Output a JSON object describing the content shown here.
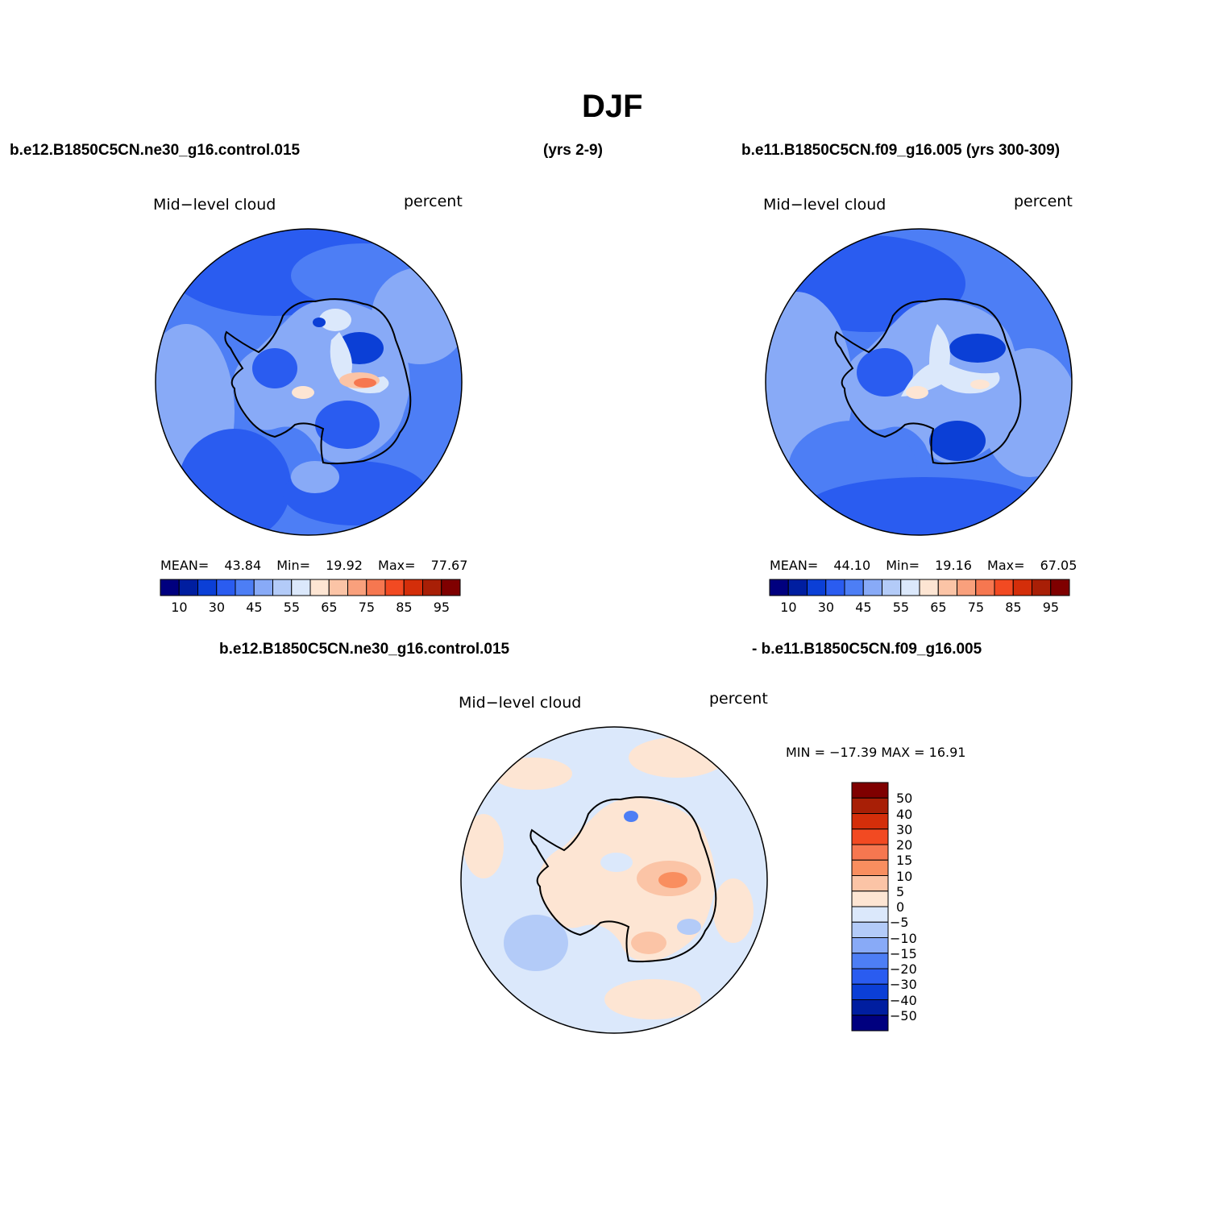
{
  "figure": {
    "title": "DJF",
    "case_left": "b.e12.B1850C5CN.ne30_g16.control.015",
    "years_left": "(yrs 2-9)",
    "case_right": "b.e11.B1850C5CN.f09_g16.005 (yrs 300-309)",
    "diff_case_a": "b.e12.B1850C5CN.ne30_g16.control.015",
    "diff_case_b": "- b.e11.B1850C5CN.f09_g16.005"
  },
  "panels": [
    {
      "variable": "Mid−level cloud",
      "units": "percent",
      "mean_label": "MEAN=",
      "mean": "43.84",
      "min_label": "Min=",
      "min": "19.92",
      "max_label": "Max=",
      "max": "77.67"
    },
    {
      "variable": "Mid−level cloud",
      "units": "percent",
      "mean_label": "MEAN=",
      "mean": "44.10",
      "min_label": "Min=",
      "min": "19.16",
      "max_label": "Max=",
      "max": "67.05"
    },
    {
      "variable": "Mid−level cloud",
      "units": "percent",
      "stats_text": "MIN = −17.39  MAX =   16.91"
    }
  ],
  "colorbar_abs": {
    "tick_labels": [
      "10",
      "30",
      "45",
      "55",
      "65",
      "75",
      "85",
      "95"
    ],
    "colors": [
      "#00007f",
      "#001ea0",
      "#0b3fd6",
      "#2a5cf0",
      "#4d7ef5",
      "#88aaf7",
      "#b3cbf8",
      "#dbe8fb",
      "#fde5d3",
      "#fbc4a6",
      "#f9a07c",
      "#f67750",
      "#f24a22",
      "#d42e0a",
      "#a81f06",
      "#7f0000"
    ]
  },
  "colorbar_diff": {
    "tick_labels": [
      "50",
      "40",
      "30",
      "20",
      "15",
      "10",
      "5",
      "0",
      "−5",
      "−10",
      "−15",
      "−20",
      "−30",
      "−40",
      "−50"
    ],
    "colors": [
      "#7f0000",
      "#a81f06",
      "#d42e0a",
      "#f24a22",
      "#f67750",
      "#f98e5f",
      "#fbc4a6",
      "#fde5d3",
      "#dbe8fb",
      "#b3cbf8",
      "#88aaf7",
      "#4d7ef5",
      "#2a5cf0",
      "#0b3fd6",
      "#001ea0",
      "#00007f"
    ]
  },
  "map": {
    "projection": "south polar stereographic",
    "field_colors": {
      "panel1_background": "#4d7ef5",
      "panel2_background": "#4d7ef5",
      "diff_background": "#dbe8fb"
    }
  }
}
